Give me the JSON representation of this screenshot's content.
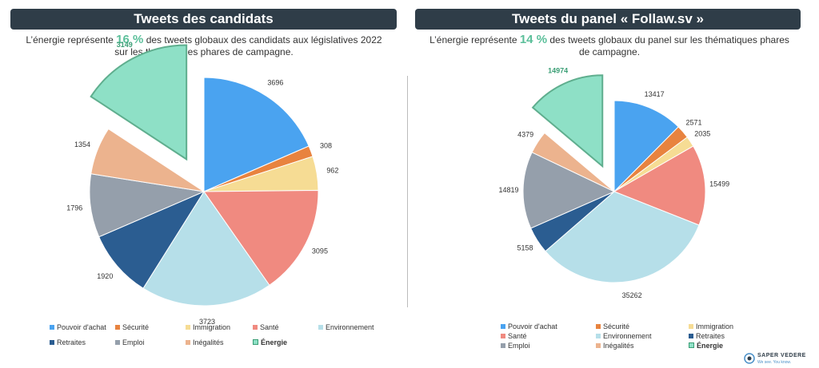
{
  "left": {
    "title": "Tweets des candidats",
    "subtitle_pre": "L’énergie représente ",
    "subtitle_highlight": "16 %",
    "subtitle_post": " des tweets globaux des candidats aux législatives 2022 sur les thématiques phares de campagne."
  },
  "right": {
    "title": "Tweets du panel « Follaw.sv »",
    "subtitle_pre": "L’énergie représente ",
    "subtitle_highlight": "14 %",
    "subtitle_post": " des tweets globaux du panel sur les thématiques phares de campagne."
  },
  "colors": {
    "Pouvoir d'achat": "#4aa3f0",
    "Sécurité": "#e8833f",
    "Immigration": "#f6dc94",
    "Santé": "#f08a80",
    "Environnement": "#b6dfe9",
    "Retraites": "#2b5d91",
    "Emploi": "#959fab",
    "Inégalités": "#ecb38e",
    "Énergie": "#8ee0c6",
    "energy_text": "#3a9e75"
  },
  "chart_data": [
    {
      "type": "pie",
      "title": "Tweets des candidats",
      "start_angle_deg": 0,
      "direction": "clockwise",
      "exploded": "Énergie",
      "legend_position": "bottom",
      "categories": [
        "Pouvoir d'achat",
        "Sécurité",
        "Immigration",
        "Santé",
        "Environnement",
        "Retraites",
        "Emploi",
        "Inégalités",
        "Énergie"
      ],
      "values": [
        3696,
        308,
        962,
        3095,
        3723,
        1920,
        1796,
        1354,
        3149
      ],
      "labels": [
        "3696",
        "308",
        "962",
        "3095",
        "3723",
        "1920",
        "1796",
        "1354",
        "3149"
      ],
      "legend": [
        "Pouvoir d'achat",
        "Sécurité",
        "Immigration",
        "Santé",
        "Environnement",
        "Retraites",
        "Emploi",
        "Inégalités",
        "Énergie"
      ]
    },
    {
      "type": "pie",
      "title": "Tweets du panel « Follaw.sv »",
      "start_angle_deg": 0,
      "direction": "clockwise",
      "exploded": "Énergie",
      "legend_position": "bottom",
      "categories": [
        "Pouvoir d'achat",
        "Sécurité",
        "Immigration",
        "Santé",
        "Environnement",
        "Retraites",
        "Emploi",
        "Inégalités",
        "Énergie"
      ],
      "values": [
        13417,
        2571,
        2035,
        15499,
        35262,
        5158,
        14819,
        4379,
        14974
      ],
      "labels": [
        "13417",
        "2571",
        "2035",
        "15499",
        "35262",
        "5158",
        "14819",
        "4379",
        "14974"
      ],
      "legend": [
        "Pouvoir d'achat",
        "Sécurité",
        "Immigration",
        "Santé",
        "Environnement",
        "Retraites",
        "Emploi",
        "Inégalités",
        "Énergie"
      ]
    }
  ],
  "logo": {
    "name": "SAPER VEDERE",
    "tagline": "We see. You know."
  }
}
